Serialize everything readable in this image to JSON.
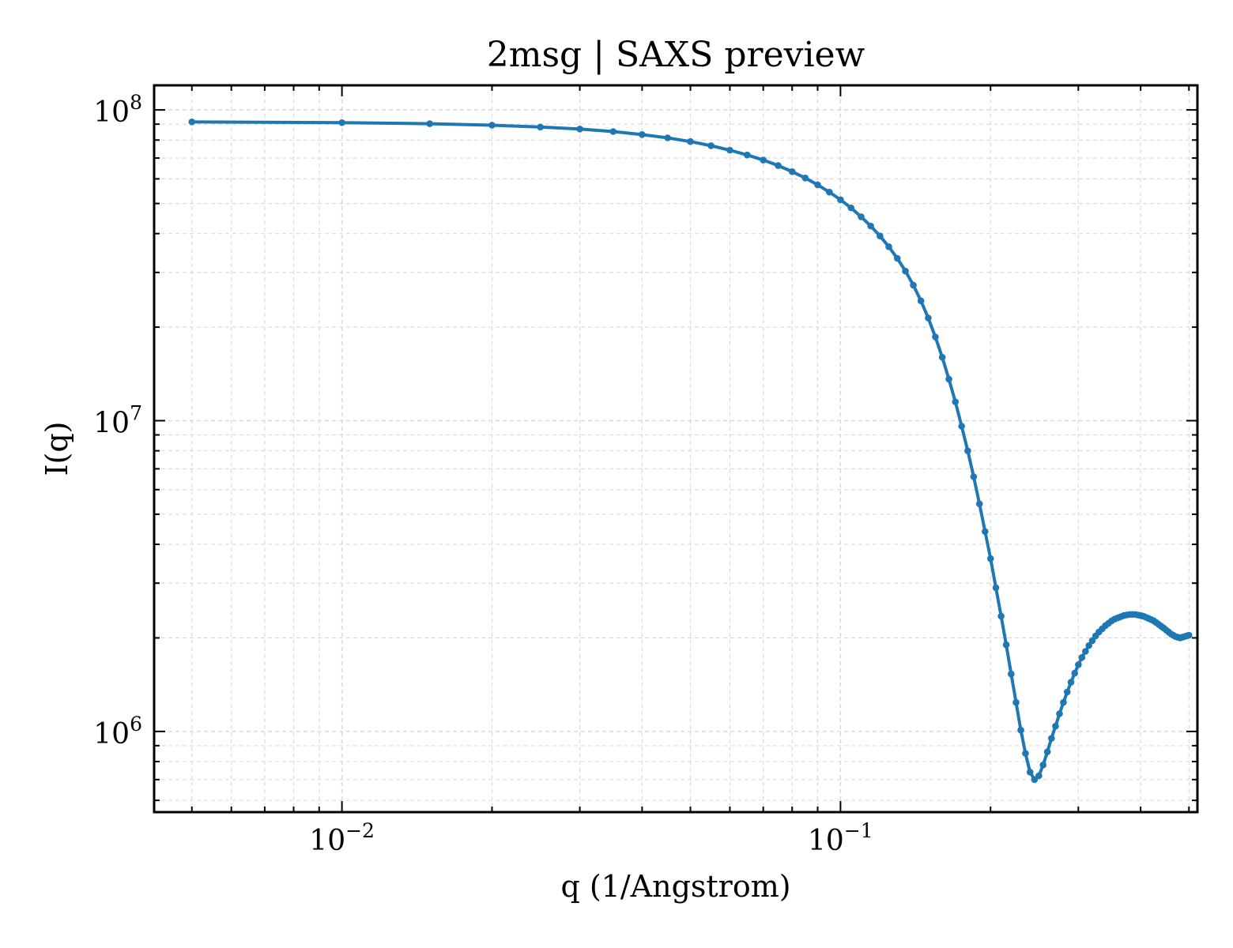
{
  "chart_data": {
    "type": "line",
    "title": "2msg | SAXS preview",
    "xlabel": "q (1/Angstrom)",
    "ylabel": "I(q)",
    "xscale": "log",
    "yscale": "log",
    "xlim": [
      0.0042,
      0.52
    ],
    "ylim": [
      550000,
      120000000
    ],
    "grid": true,
    "x_ticks": [
      {
        "value": 0.01,
        "base": "10",
        "exp": "−2"
      },
      {
        "value": 0.1,
        "base": "10",
        "exp": "−1"
      }
    ],
    "y_ticks": [
      {
        "value": 1000000,
        "base": "10",
        "exp": "6"
      },
      {
        "value": 10000000,
        "base": "10",
        "exp": "7"
      },
      {
        "value": 100000000,
        "base": "10",
        "exp": "8"
      }
    ],
    "colors": {
      "series": "#1f77b4",
      "grid": "#d9d9d9",
      "axes": "#000000"
    },
    "series": [
      {
        "x": [
          0.005,
          0.01,
          0.015,
          0.02,
          0.025,
          0.03,
          0.035,
          0.04,
          0.045,
          0.05,
          0.055,
          0.06,
          0.065,
          0.07,
          0.075,
          0.08,
          0.085,
          0.09,
          0.095,
          0.1,
          0.105,
          0.11,
          0.115,
          0.12,
          0.125,
          0.13,
          0.135,
          0.14,
          0.145,
          0.15,
          0.155,
          0.16,
          0.165,
          0.17,
          0.175,
          0.18,
          0.185,
          0.19,
          0.195,
          0.2,
          0.205,
          0.21,
          0.215,
          0.22,
          0.225,
          0.23,
          0.235,
          0.24,
          0.245,
          0.25,
          0.255,
          0.26,
          0.265,
          0.27,
          0.275,
          0.28,
          0.285,
          0.29,
          0.295,
          0.3,
          0.305,
          0.31,
          0.315,
          0.32,
          0.325,
          0.33,
          0.335,
          0.34,
          0.345,
          0.35,
          0.355,
          0.36,
          0.365,
          0.37,
          0.375,
          0.38,
          0.385,
          0.39,
          0.395,
          0.4,
          0.405,
          0.41,
          0.415,
          0.42,
          0.425,
          0.43,
          0.435,
          0.44,
          0.445,
          0.45,
          0.455,
          0.46,
          0.465,
          0.47,
          0.475,
          0.48,
          0.485,
          0.49,
          0.495,
          0.5
        ],
        "y": [
          91500000,
          91000000,
          90300000,
          89300000,
          88100000,
          86800000,
          85200000,
          83300000,
          81300000,
          79100000,
          76700000,
          74200000,
          71600000,
          69000000,
          66200000,
          63300000,
          60400000,
          57400000,
          54400000,
          51400000,
          48400000,
          45300000,
          42300000,
          39300000,
          36300000,
          33300000,
          30300000,
          27300000,
          24300000,
          21400000,
          18600000,
          16000000,
          13600000,
          11500000,
          9600000,
          8000000,
          6600000,
          5400000,
          4400000,
          3600000,
          2900000,
          2350000,
          1900000,
          1530000,
          1240000,
          1010000,
          850000,
          740000,
          700000,
          720000,
          780000,
          860000,
          950000,
          1040000,
          1140000,
          1240000,
          1340000,
          1440000,
          1540000,
          1640000,
          1730000,
          1810000,
          1890000,
          1960000,
          2030000,
          2090000,
          2140000,
          2190000,
          2230000,
          2270000,
          2300000,
          2320000,
          2340000,
          2360000,
          2370000,
          2380000,
          2380000,
          2380000,
          2370000,
          2360000,
          2350000,
          2330000,
          2310000,
          2290000,
          2270000,
          2240000,
          2210000,
          2180000,
          2150000,
          2120000,
          2090000,
          2060000,
          2040000,
          2020000,
          2010000,
          2000000,
          2010000,
          2020000,
          2030000,
          2040000
        ]
      }
    ]
  }
}
